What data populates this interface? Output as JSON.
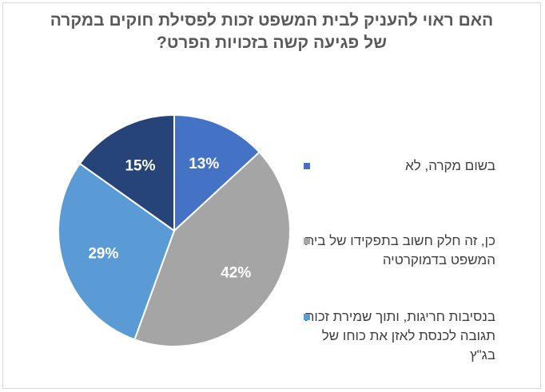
{
  "chart_data": {
    "type": "pie",
    "title_lines": [
      "האם ראוי להעניק לבית המשפט זכות לפסילת חוקים במקרה",
      "של פגיעה קשה בזכויות הפרט?"
    ],
    "slices": [
      {
        "label": "בשום מקרה, לא",
        "value": 13,
        "display": "13%",
        "color": "#4472C4"
      },
      {
        "label": "כן, זה חלק חשוב בתפקידו של בית המשפט בדמוקרטיה",
        "value": 42,
        "display": "42%",
        "color": "#A5A5A5"
      },
      {
        "label": "בנסיבות חריגות, ותוך שמירת זכות תגובה לכנסת לאזן את כוחו של בג\"ץ",
        "value": 29,
        "display": "29%",
        "color": "#5B9BD5"
      },
      {
        "label": "",
        "value": 15,
        "display": "15%",
        "color": "#264478"
      }
    ],
    "legend_position": "right",
    "start_angle": "top",
    "direction": "clockwise"
  }
}
